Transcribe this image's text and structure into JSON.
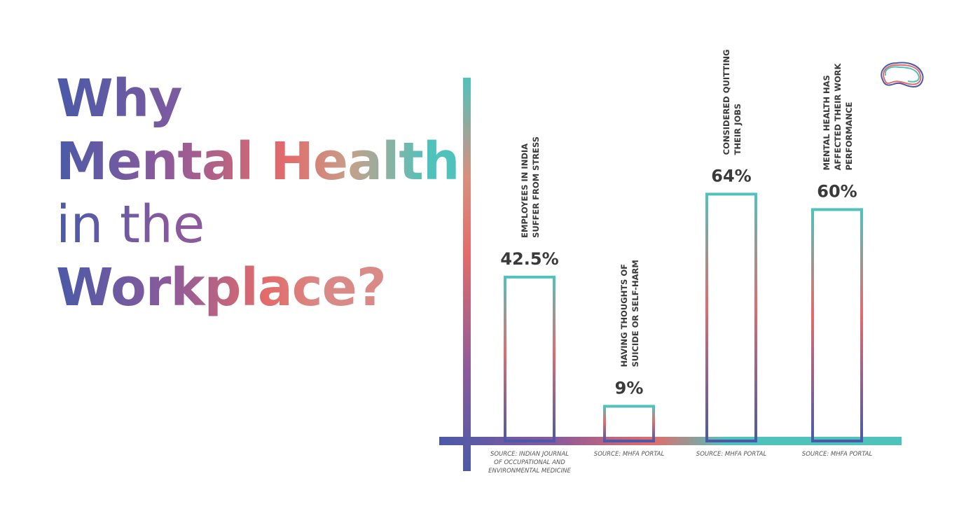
{
  "title": {
    "line1": "Why",
    "line2": "Mental Health",
    "line3": "in the",
    "line4": "Workplace?"
  },
  "chart_data": {
    "type": "bar",
    "categories": [
      "EMPLOYEES IN INDIA SUFFER FROM STRESS",
      "HAVING THOUGHTS OF SUICIDE OR SELF-HARM",
      "CONSIDERED QUITTING THEIR JOBS",
      "MENTAL HEALTH HAS AFFECTED THEIR WORK PERFORMANCE"
    ],
    "values": [
      42.5,
      9,
      64,
      60
    ],
    "value_labels": [
      "42.5%",
      "9%",
      "64%",
      "60%"
    ],
    "label_lines": [
      [
        "EMPLOYEES IN INDIA",
        "SUFFER FROM STRESS"
      ],
      [
        "HAVING THOUGHTS OF",
        "SUICIDE OR SELF-HARM"
      ],
      [
        "CONSIDERED QUITTING",
        "THEIR JOBS"
      ],
      [
        "MENTAL HEALTH HAS",
        "AFFECTED THEIR WORK",
        "PERFORMANCE"
      ]
    ],
    "sources": [
      [
        "SOURCE: INDIAN JOURNAL",
        "OF OCCUPATIONAL AND",
        "ENVIRONMENTAL MEDICINE"
      ],
      [
        "SOURCE: MHFA PORTAL"
      ],
      [
        "SOURCE: MHFA PORTAL"
      ],
      [
        "SOURCE: MHFA PORTAL"
      ]
    ],
    "ylim": [
      0,
      100
    ],
    "grid": false,
    "legend": "none"
  },
  "colors": {
    "navy": "#4a5aa8",
    "coral": "#e36b6b",
    "teal": "#4fc3bb",
    "text": "#3a3a3a",
    "source_text": "#555555"
  },
  "icons": {
    "logo": "brain-logo-icon"
  }
}
